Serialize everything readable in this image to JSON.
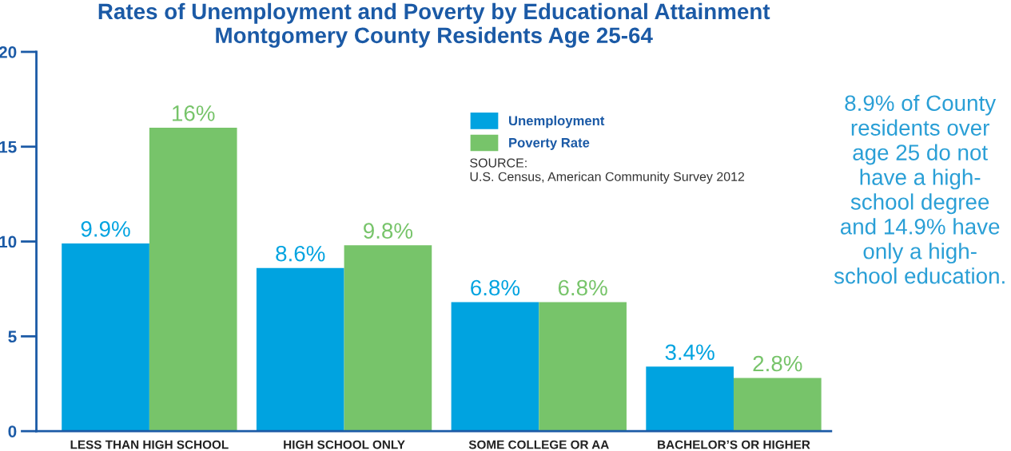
{
  "chart_data": {
    "type": "bar",
    "title": "Rates of Unemployment and Poverty by Educational Attainment\nMontgomery County Residents Age 25-64",
    "categories": [
      "LESS THAN HIGH SCHOOL",
      "HIGH SCHOOL ONLY",
      "SOME COLLEGE OR AA",
      "BACHELOR’S OR HIGHER"
    ],
    "series": [
      {
        "name": "Unemployment",
        "color": "#00a3e0",
        "values": [
          9.9,
          8.6,
          6.8,
          3.4
        ],
        "value_labels": [
          "9.9%",
          "8.6%",
          "6.8%",
          "3.4%"
        ]
      },
      {
        "name": "Poverty Rate",
        "color": "#77c46a",
        "values": [
          16,
          9.8,
          6.8,
          2.8
        ],
        "value_labels": [
          "16%",
          "9.8%",
          "6.8%",
          "2.8%"
        ]
      }
    ],
    "ylim": [
      0,
      20
    ],
    "yticks": [
      0,
      5,
      10,
      15,
      20
    ],
    "grid": false,
    "legend": "top right",
    "annotations": [
      "SOURCE:\nU.S. Census, American Community Survey 2012",
      "8.9% of County\nresidents over\nage 25 do not\nhave a high-\nschool degree\nand 14.9% have\nonly a high-\nschool education."
    ]
  }
}
